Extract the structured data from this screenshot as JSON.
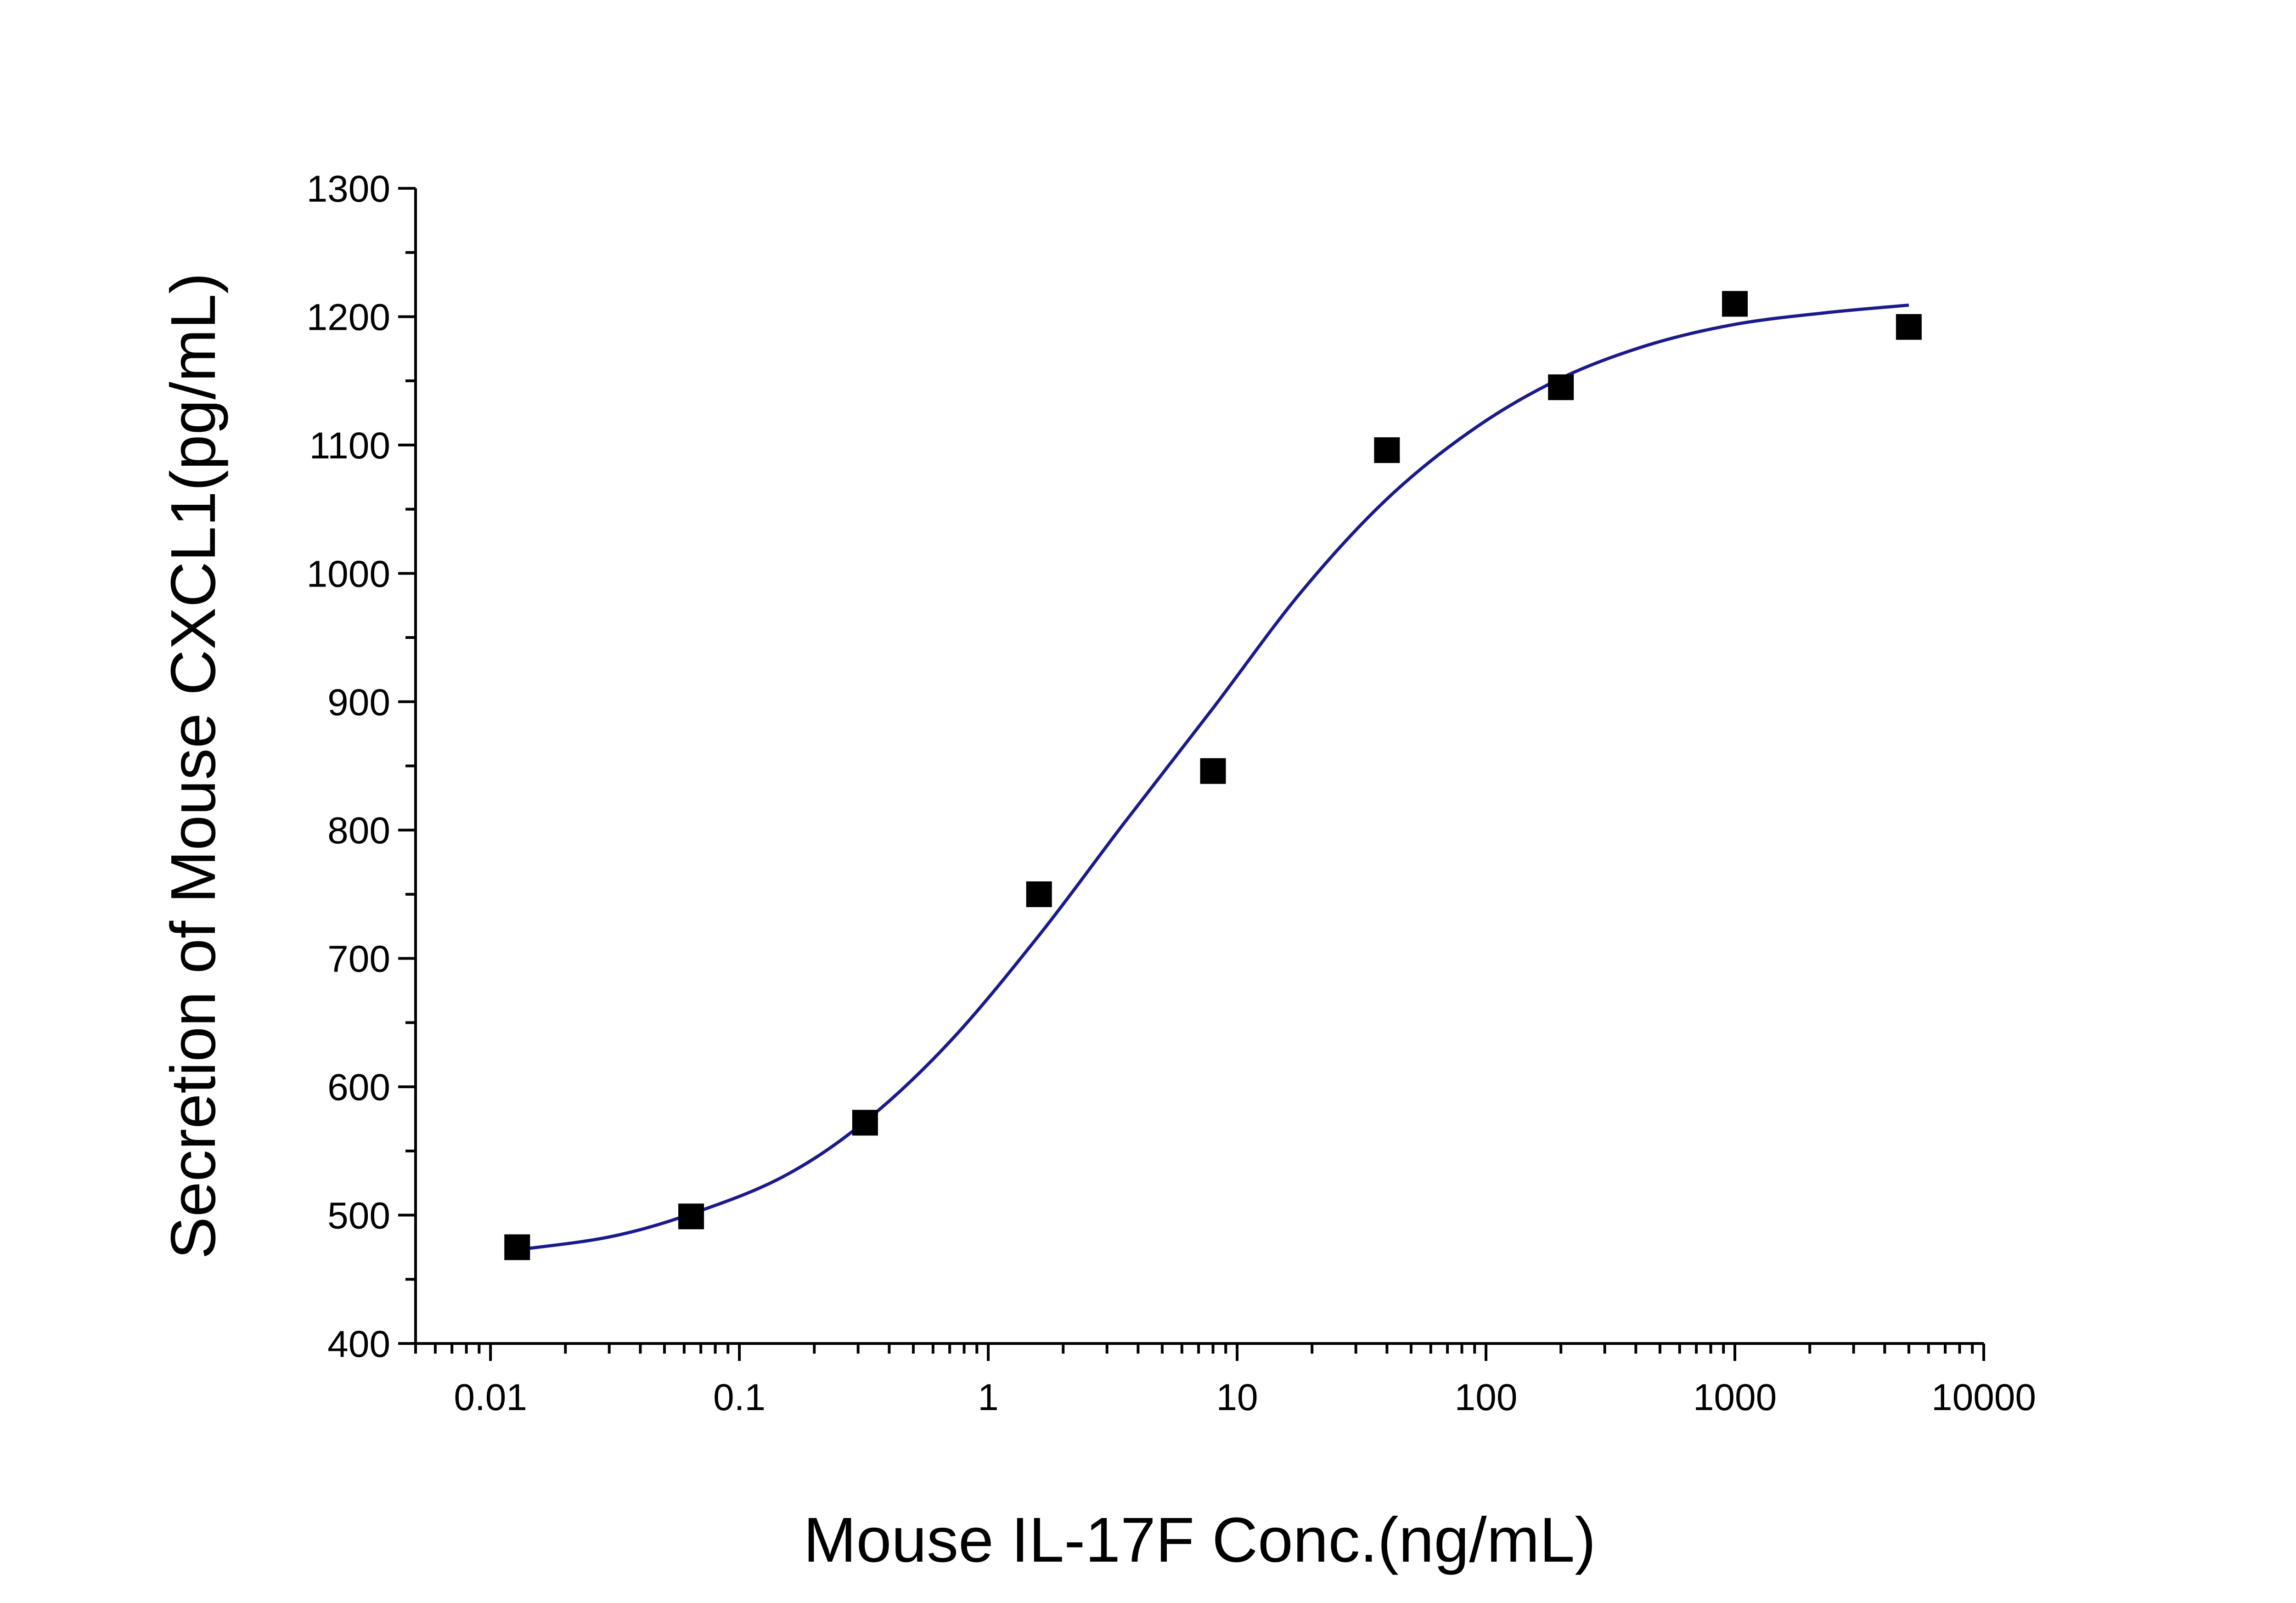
{
  "chart_data": {
    "type": "scatter",
    "title": "",
    "xlabel": "Mouse IL-17F Conc.(ng/mL)",
    "ylabel": "Secretion of Mouse CXCL1(pg/mL)",
    "xscale": "log",
    "xlim": [
      0.005,
      10000
    ],
    "ylim": [
      400,
      1300
    ],
    "grid": false,
    "legend": "none",
    "x_ticks": [
      0.01,
      0.1,
      1,
      10,
      100,
      1000,
      10000
    ],
    "x_tick_labels": [
      "0.01",
      "0.1",
      "1",
      "10",
      "100",
      "1000",
      "10000"
    ],
    "y_ticks": [
      400,
      500,
      600,
      700,
      800,
      900,
      1000,
      1100,
      1200,
      1300
    ],
    "y_tick_labels": [
      "400",
      "500",
      "600",
      "700",
      "800",
      "900",
      "1000",
      "1100",
      "1200",
      "1300"
    ],
    "series": [
      {
        "kind": "points",
        "marker": "square",
        "color": "#000000",
        "points": [
          {
            "x": 0.0128,
            "y": 475
          },
          {
            "x": 0.064,
            "y": 499
          },
          {
            "x": 0.32,
            "y": 572
          },
          {
            "x": 1.6,
            "y": 750
          },
          {
            "x": 8,
            "y": 846
          },
          {
            "x": 40,
            "y": 1096
          },
          {
            "x": 200,
            "y": 1145
          },
          {
            "x": 1000,
            "y": 1210
          },
          {
            "x": 5000,
            "y": 1192
          }
        ]
      },
      {
        "kind": "fit-curve",
        "color": "#1a1a8c",
        "points": [
          {
            "x": 0.0128,
            "y": 473
          },
          {
            "x": 0.03,
            "y": 483
          },
          {
            "x": 0.064,
            "y": 501
          },
          {
            "x": 0.15,
            "y": 530
          },
          {
            "x": 0.32,
            "y": 573
          },
          {
            "x": 0.7,
            "y": 635
          },
          {
            "x": 1.6,
            "y": 718
          },
          {
            "x": 3.5,
            "y": 805
          },
          {
            "x": 8,
            "y": 895
          },
          {
            "x": 18,
            "y": 985
          },
          {
            "x": 40,
            "y": 1058
          },
          {
            "x": 90,
            "y": 1113
          },
          {
            "x": 200,
            "y": 1152
          },
          {
            "x": 450,
            "y": 1178
          },
          {
            "x": 1000,
            "y": 1194
          },
          {
            "x": 2300,
            "y": 1203
          },
          {
            "x": 5000,
            "y": 1209
          }
        ]
      }
    ]
  }
}
